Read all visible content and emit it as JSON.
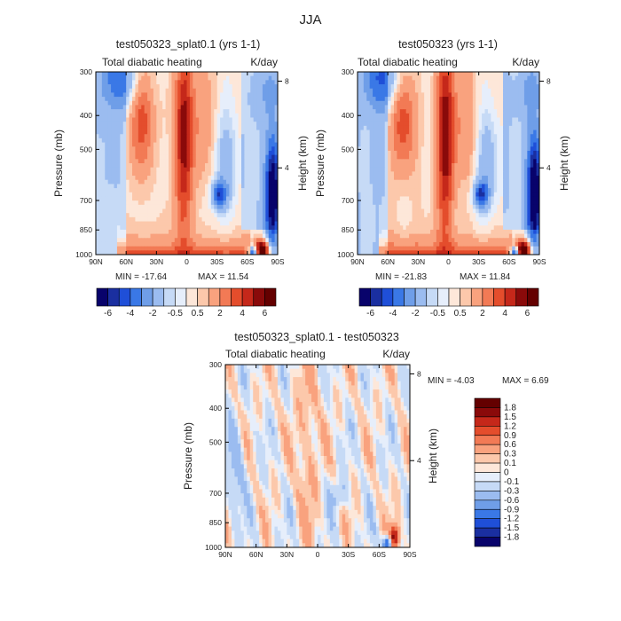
{
  "figure_title": "JJA",
  "chart_data": [
    {
      "type": "heatmap",
      "title": "test050323_splat0.1 (yrs 1-1)",
      "subtitle_left": "Total diabatic heating",
      "subtitle_right": "K/day",
      "xlabel": "",
      "ylabel": "Pressure (mb)",
      "y2label": "Height (km)",
      "x_ticks": [
        "90N",
        "60N",
        "30N",
        "0",
        "30S",
        "60S",
        "90S"
      ],
      "x_tick_values": [
        90,
        60,
        30,
        0,
        -30,
        -60,
        -90
      ],
      "xlim": [
        90,
        -90
      ],
      "y_ticks": [
        "300",
        "400",
        "500",
        "700",
        "850",
        "1000"
      ],
      "y_tick_values": [
        300,
        400,
        500,
        700,
        850,
        1000
      ],
      "ylim": [
        300,
        1000
      ],
      "y2_ticks": [
        "8",
        "4"
      ],
      "y2_tick_values": [
        8,
        4
      ],
      "min_label": "MIN = -17.64",
      "max_label": "MAX = 11.54",
      "min": -17.64,
      "max": 11.54,
      "colorbar_levels": [
        -7,
        -6,
        -5,
        -4,
        -3,
        -2,
        -1,
        -0.5,
        0,
        0.5,
        1,
        2,
        3,
        4,
        5,
        6,
        7
      ],
      "colorbar_labels": [
        "-6",
        "-4",
        "-2",
        "-0.5",
        "0.5",
        "2",
        "4",
        "6"
      ]
    },
    {
      "type": "heatmap",
      "title": "test050323 (yrs 1-1)",
      "subtitle_left": "Total diabatic heating",
      "subtitle_right": "K/day",
      "xlabel": "",
      "ylabel": "Pressure (mb)",
      "y2label": "Height (km)",
      "x_ticks": [
        "90N",
        "60N",
        "30N",
        "0",
        "30S",
        "60S",
        "90S"
      ],
      "x_tick_values": [
        90,
        60,
        30,
        0,
        -30,
        -60,
        -90
      ],
      "xlim": [
        90,
        -90
      ],
      "y_ticks": [
        "300",
        "400",
        "500",
        "700",
        "850",
        "1000"
      ],
      "y_tick_values": [
        300,
        400,
        500,
        700,
        850,
        1000
      ],
      "ylim": [
        300,
        1000
      ],
      "y2_ticks": [
        "8",
        "4"
      ],
      "y2_tick_values": [
        8,
        4
      ],
      "min_label": "MIN = -21.83",
      "max_label": "MAX = 11.84",
      "min": -21.83,
      "max": 11.84,
      "colorbar_levels": [
        -7,
        -6,
        -5,
        -4,
        -3,
        -2,
        -1,
        -0.5,
        0,
        0.5,
        1,
        2,
        3,
        4,
        5,
        6,
        7
      ],
      "colorbar_labels": [
        "-6",
        "-4",
        "-2",
        "-0.5",
        "0.5",
        "2",
        "4",
        "6"
      ]
    },
    {
      "type": "heatmap",
      "title": "test050323_splat0.1 - test050323",
      "subtitle_left": "Total diabatic heating",
      "subtitle_right": "K/day",
      "xlabel": "",
      "ylabel": "Pressure (mb)",
      "y2label": "Height (km)",
      "x_ticks": [
        "90N",
        "60N",
        "30N",
        "0",
        "30S",
        "60S",
        "90S"
      ],
      "x_tick_values": [
        90,
        60,
        30,
        0,
        -30,
        -60,
        -90
      ],
      "xlim": [
        90,
        -90
      ],
      "y_ticks": [
        "300",
        "400",
        "500",
        "700",
        "850",
        "1000"
      ],
      "y_tick_values": [
        300,
        400,
        500,
        700,
        850,
        1000
      ],
      "ylim": [
        300,
        1000
      ],
      "y2_ticks": [
        "8",
        "4"
      ],
      "y2_tick_values": [
        8,
        4
      ],
      "min_label": "MIN = -4.03",
      "max_label": "MAX = 6.69",
      "min": -4.03,
      "max": 6.69,
      "colorbar_levels": [
        2.1,
        1.8,
        1.5,
        1.2,
        0.9,
        0.6,
        0.3,
        0.1,
        0,
        -0.1,
        -0.3,
        -0.6,
        -0.9,
        -1.2,
        -1.5,
        -1.8,
        -2.1
      ],
      "colorbar_labels": [
        "1.8",
        "1.5",
        "1.2",
        "0.9",
        "0.6",
        "0.3",
        "0.1",
        "0",
        "-0.1",
        "-0.3",
        "-0.6",
        "-0.9",
        "-1.2",
        "-1.5",
        "-1.8"
      ]
    }
  ],
  "colors": {
    "palette": [
      "#08036b",
      "#1a2fa0",
      "#1f4fd8",
      "#3a78e6",
      "#6f9ee8",
      "#9bbcf0",
      "#c6daf6",
      "#e6eefb",
      "#fde7d9",
      "#fcc8ab",
      "#f9a27e",
      "#f27a55",
      "#e44d2c",
      "#c5281a",
      "#8a0a0a",
      "#640000"
    ]
  }
}
